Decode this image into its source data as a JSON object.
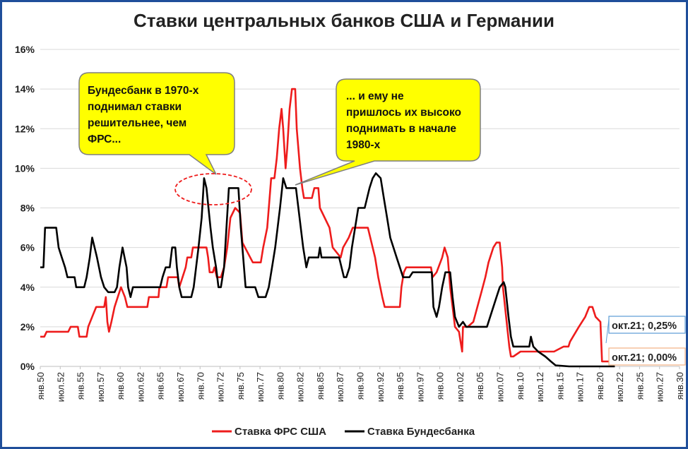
{
  "chart_data": {
    "type": "line",
    "title": "Ставки центральных банков США и Германии",
    "x_start": "янв.50",
    "x_end": "янв.30",
    "x_tick_labels": [
      "янв.50",
      "июл.52",
      "янв.55",
      "июл.57",
      "янв.60",
      "июл.62",
      "янв.65",
      "июл.67",
      "янв.70",
      "июл.72",
      "янв.75",
      "июл.77",
      "янв.80",
      "июл.82",
      "янв.85",
      "июл.87",
      "янв.90",
      "июл.92",
      "янв.95",
      "июл.97",
      "янв.00",
      "июл.02",
      "янв.05",
      "июл.07",
      "янв.10",
      "июл.12",
      "янв.15",
      "июл.17",
      "янв.20",
      "июл.22",
      "янв.25",
      "июл.27",
      "янв.30"
    ],
    "y_tick_labels": [
      "0%",
      "2%",
      "4%",
      "6%",
      "8%",
      "10%",
      "12%",
      "14%",
      "16%"
    ],
    "ylim": [
      0,
      16
    ],
    "grid": true,
    "legend_position": "bottom",
    "series": [
      {
        "name": "Ставка ФРС США",
        "color": "#ee1c1c",
        "points": [
          [
            1950.0,
            1.5
          ],
          [
            1950.5,
            1.5
          ],
          [
            1950.8,
            1.75
          ],
          [
            1953.5,
            1.75
          ],
          [
            1953.8,
            2.0
          ],
          [
            1954.7,
            2.0
          ],
          [
            1954.9,
            1.5
          ],
          [
            1955.8,
            1.5
          ],
          [
            1956.0,
            2.0
          ],
          [
            1956.5,
            2.5
          ],
          [
            1957.0,
            3.0
          ],
          [
            1958.0,
            3.0
          ],
          [
            1958.2,
            3.5
          ],
          [
            1958.4,
            2.25
          ],
          [
            1958.6,
            1.75
          ],
          [
            1958.9,
            2.25
          ],
          [
            1959.3,
            3.0
          ],
          [
            1959.7,
            3.5
          ],
          [
            1960.1,
            4.0
          ],
          [
            1960.6,
            3.5
          ],
          [
            1960.9,
            3.0
          ],
          [
            1963.4,
            3.0
          ],
          [
            1963.6,
            3.5
          ],
          [
            1964.8,
            3.5
          ],
          [
            1964.9,
            4.0
          ],
          [
            1965.8,
            4.0
          ],
          [
            1966.0,
            4.5
          ],
          [
            1967.2,
            4.5
          ],
          [
            1967.4,
            4.0
          ],
          [
            1967.8,
            4.5
          ],
          [
            1968.2,
            5.0
          ],
          [
            1968.4,
            5.5
          ],
          [
            1968.9,
            5.5
          ],
          [
            1969.1,
            6.0
          ],
          [
            1970.8,
            6.0
          ],
          [
            1971.0,
            5.5
          ],
          [
            1971.2,
            4.75
          ],
          [
            1971.6,
            4.75
          ],
          [
            1971.8,
            5.0
          ],
          [
            1972.1,
            4.5
          ],
          [
            1972.6,
            4.5
          ],
          [
            1973.0,
            5.0
          ],
          [
            1973.4,
            6.0
          ],
          [
            1973.8,
            7.5
          ],
          [
            1974.4,
            8.0
          ],
          [
            1975.0,
            7.75
          ],
          [
            1975.3,
            6.25
          ],
          [
            1976.6,
            5.25
          ],
          [
            1977.6,
            5.25
          ],
          [
            1977.9,
            6.0
          ],
          [
            1978.4,
            7.0
          ],
          [
            1978.9,
            9.5
          ],
          [
            1979.3,
            9.5
          ],
          [
            1979.6,
            10.5
          ],
          [
            1979.9,
            12.0
          ],
          [
            1980.2,
            13.0
          ],
          [
            1980.4,
            12.0
          ],
          [
            1980.7,
            10.0
          ],
          [
            1980.9,
            11.0
          ],
          [
            1981.2,
            13.0
          ],
          [
            1981.5,
            14.0
          ],
          [
            1981.9,
            14.0
          ],
          [
            1982.1,
            12.0
          ],
          [
            1982.5,
            10.0
          ],
          [
            1982.8,
            9.0
          ],
          [
            1983.0,
            8.5
          ],
          [
            1984.0,
            8.5
          ],
          [
            1984.3,
            9.0
          ],
          [
            1984.8,
            9.0
          ],
          [
            1985.0,
            8.0
          ],
          [
            1985.6,
            7.5
          ],
          [
            1986.2,
            7.0
          ],
          [
            1986.6,
            6.0
          ],
          [
            1987.6,
            5.5
          ],
          [
            1987.9,
            6.0
          ],
          [
            1988.6,
            6.5
          ],
          [
            1989.1,
            7.0
          ],
          [
            1991.0,
            7.0
          ],
          [
            1991.3,
            6.5
          ],
          [
            1991.9,
            5.5
          ],
          [
            1992.3,
            4.5
          ],
          [
            1992.8,
            3.5
          ],
          [
            1993.1,
            3.0
          ],
          [
            1995.0,
            3.0
          ],
          [
            1995.2,
            4.0
          ],
          [
            1995.5,
            4.75
          ],
          [
            1995.8,
            5.0
          ],
          [
            1998.9,
            5.0
          ],
          [
            1999.1,
            4.5
          ],
          [
            1999.6,
            4.75
          ],
          [
            2000.3,
            5.5
          ],
          [
            2000.6,
            6.0
          ],
          [
            2001.0,
            5.5
          ],
          [
            2001.3,
            4.0
          ],
          [
            2001.6,
            3.0
          ],
          [
            2001.9,
            2.0
          ],
          [
            2002.4,
            1.75
          ],
          [
            2002.6,
            1.25
          ],
          [
            2002.8,
            0.75
          ],
          [
            2002.9,
            2.0
          ],
          [
            2003.5,
            2.0
          ],
          [
            2004.2,
            2.25
          ],
          [
            2004.7,
            3.0
          ],
          [
            2005.2,
            3.75
          ],
          [
            2005.7,
            4.5
          ],
          [
            2006.1,
            5.25
          ],
          [
            2006.7,
            6.0
          ],
          [
            2007.1,
            6.25
          ],
          [
            2007.5,
            6.25
          ],
          [
            2007.8,
            5.0
          ],
          [
            2007.9,
            4.0
          ],
          [
            2008.3,
            2.5
          ],
          [
            2008.7,
            1.0
          ],
          [
            2008.9,
            0.5
          ],
          [
            2009.2,
            0.5
          ],
          [
            2010.1,
            0.75
          ],
          [
            2014.3,
            0.75
          ],
          [
            2015.5,
            1.0
          ],
          [
            2016.1,
            1.0
          ],
          [
            2016.3,
            1.25
          ],
          [
            2017.4,
            2.0
          ],
          [
            2018.2,
            2.5
          ],
          [
            2018.7,
            3.0
          ],
          [
            2019.1,
            3.0
          ],
          [
            2019.5,
            2.5
          ],
          [
            2020.1,
            2.25
          ],
          [
            2020.3,
            0.25
          ],
          [
            2021.9,
            0.25
          ]
        ]
      },
      {
        "name": "Ставка Бундесбанка",
        "color": "#000000",
        "points": [
          [
            1950.0,
            5.0
          ],
          [
            1950.4,
            5.0
          ],
          [
            1950.6,
            7.0
          ],
          [
            1952.0,
            7.0
          ],
          [
            1952.3,
            6.0
          ],
          [
            1952.7,
            5.5
          ],
          [
            1953.1,
            5.0
          ],
          [
            1953.4,
            4.5
          ],
          [
            1954.3,
            4.5
          ],
          [
            1954.5,
            4.0
          ],
          [
            1955.5,
            4.0
          ],
          [
            1955.8,
            4.5
          ],
          [
            1956.2,
            5.5
          ],
          [
            1956.5,
            6.5
          ],
          [
            1956.8,
            6.0
          ],
          [
            1957.1,
            5.5
          ],
          [
            1957.6,
            4.5
          ],
          [
            1958.0,
            4.0
          ],
          [
            1958.5,
            3.75
          ],
          [
            1959.3,
            3.75
          ],
          [
            1959.6,
            4.0
          ],
          [
            1959.9,
            5.0
          ],
          [
            1960.3,
            6.0
          ],
          [
            1960.8,
            5.0
          ],
          [
            1961.0,
            4.0
          ],
          [
            1961.3,
            3.5
          ],
          [
            1961.6,
            4.0
          ],
          [
            1964.6,
            4.0
          ],
          [
            1965.0,
            4.0
          ],
          [
            1965.3,
            4.5
          ],
          [
            1965.7,
            5.0
          ],
          [
            1966.2,
            5.0
          ],
          [
            1966.5,
            6.0
          ],
          [
            1966.9,
            6.0
          ],
          [
            1967.1,
            5.0
          ],
          [
            1967.4,
            4.0
          ],
          [
            1967.7,
            3.5
          ],
          [
            1968.9,
            3.5
          ],
          [
            1969.2,
            4.0
          ],
          [
            1969.5,
            5.0
          ],
          [
            1969.8,
            6.0
          ],
          [
            1970.2,
            7.5
          ],
          [
            1970.5,
            9.5
          ],
          [
            1970.8,
            9.0
          ],
          [
            1971.3,
            7.0
          ],
          [
            1971.6,
            6.0
          ],
          [
            1972.0,
            5.0
          ],
          [
            1972.3,
            4.0
          ],
          [
            1972.6,
            4.0
          ],
          [
            1973.0,
            5.0
          ],
          [
            1973.3,
            7.0
          ],
          [
            1973.6,
            9.0
          ],
          [
            1974.8,
            9.0
          ],
          [
            1975.1,
            7.0
          ],
          [
            1975.4,
            5.5
          ],
          [
            1975.7,
            4.0
          ],
          [
            1976.9,
            4.0
          ],
          [
            1977.3,
            3.5
          ],
          [
            1978.2,
            3.5
          ],
          [
            1978.6,
            4.0
          ],
          [
            1979.0,
            5.0
          ],
          [
            1979.4,
            6.0
          ],
          [
            1979.7,
            7.0
          ],
          [
            1980.0,
            8.0
          ],
          [
            1980.4,
            9.5
          ],
          [
            1980.8,
            9.0
          ],
          [
            1982.0,
            9.0
          ],
          [
            1982.3,
            8.0
          ],
          [
            1982.6,
            7.0
          ],
          [
            1982.9,
            6.0
          ],
          [
            1983.3,
            5.0
          ],
          [
            1983.6,
            5.5
          ],
          [
            1984.8,
            5.5
          ],
          [
            1985.0,
            6.0
          ],
          [
            1985.2,
            5.5
          ],
          [
            1987.4,
            5.5
          ],
          [
            1987.7,
            5.0
          ],
          [
            1988.0,
            4.5
          ],
          [
            1988.3,
            4.5
          ],
          [
            1988.7,
            5.0
          ],
          [
            1989.0,
            6.0
          ],
          [
            1989.4,
            7.0
          ],
          [
            1989.8,
            8.0
          ],
          [
            1990.6,
            8.0
          ],
          [
            1990.9,
            8.5
          ],
          [
            1991.2,
            9.0
          ],
          [
            1991.6,
            9.5
          ],
          [
            1992.0,
            9.75
          ],
          [
            1992.6,
            9.5
          ],
          [
            1993.0,
            8.5
          ],
          [
            1993.4,
            7.5
          ],
          [
            1993.8,
            6.5
          ],
          [
            1994.2,
            6.0
          ],
          [
            1994.6,
            5.5
          ],
          [
            1995.0,
            5.0
          ],
          [
            1995.4,
            4.5
          ],
          [
            1996.2,
            4.5
          ],
          [
            1996.6,
            4.75
          ],
          [
            1999.0,
            4.75
          ],
          [
            1999.2,
            3.0
          ],
          [
            1999.6,
            2.5
          ],
          [
            1999.9,
            3.0
          ],
          [
            2000.3,
            4.0
          ],
          [
            2000.7,
            4.75
          ],
          [
            2001.3,
            4.75
          ],
          [
            2001.6,
            3.5
          ],
          [
            2001.9,
            2.5
          ],
          [
            2002.4,
            2.0
          ],
          [
            2002.9,
            2.25
          ],
          [
            2003.3,
            2.0
          ],
          [
            2005.9,
            2.0
          ],
          [
            2006.3,
            2.5
          ],
          [
            2006.7,
            3.0
          ],
          [
            2007.1,
            3.5
          ],
          [
            2007.5,
            4.0
          ],
          [
            2008.0,
            4.25
          ],
          [
            2008.2,
            4.0
          ],
          [
            2008.6,
            2.5
          ],
          [
            2008.9,
            1.5
          ],
          [
            2009.2,
            1.0
          ],
          [
            2011.2,
            1.0
          ],
          [
            2011.4,
            1.5
          ],
          [
            2011.7,
            1.0
          ],
          [
            2012.3,
            0.75
          ],
          [
            2013.2,
            0.5
          ],
          [
            2013.9,
            0.25
          ],
          [
            2014.5,
            0.05
          ],
          [
            2016.2,
            0.0
          ],
          [
            2021.9,
            0.0
          ]
        ]
      }
    ],
    "callouts": [
      {
        "text": "окт.21; 0,25%"
      },
      {
        "text": "окт.21; 0,00%"
      }
    ],
    "annotations": [
      {
        "lines": [
          "Бундесбанк в 1970-х",
          "поднимал ставки",
          "решительнее, чем",
          "ФРС..."
        ]
      },
      {
        "lines": [
          "... и ему не",
          "пришлось их высоко",
          "поднимать в начале",
          "1980-х"
        ]
      }
    ]
  }
}
